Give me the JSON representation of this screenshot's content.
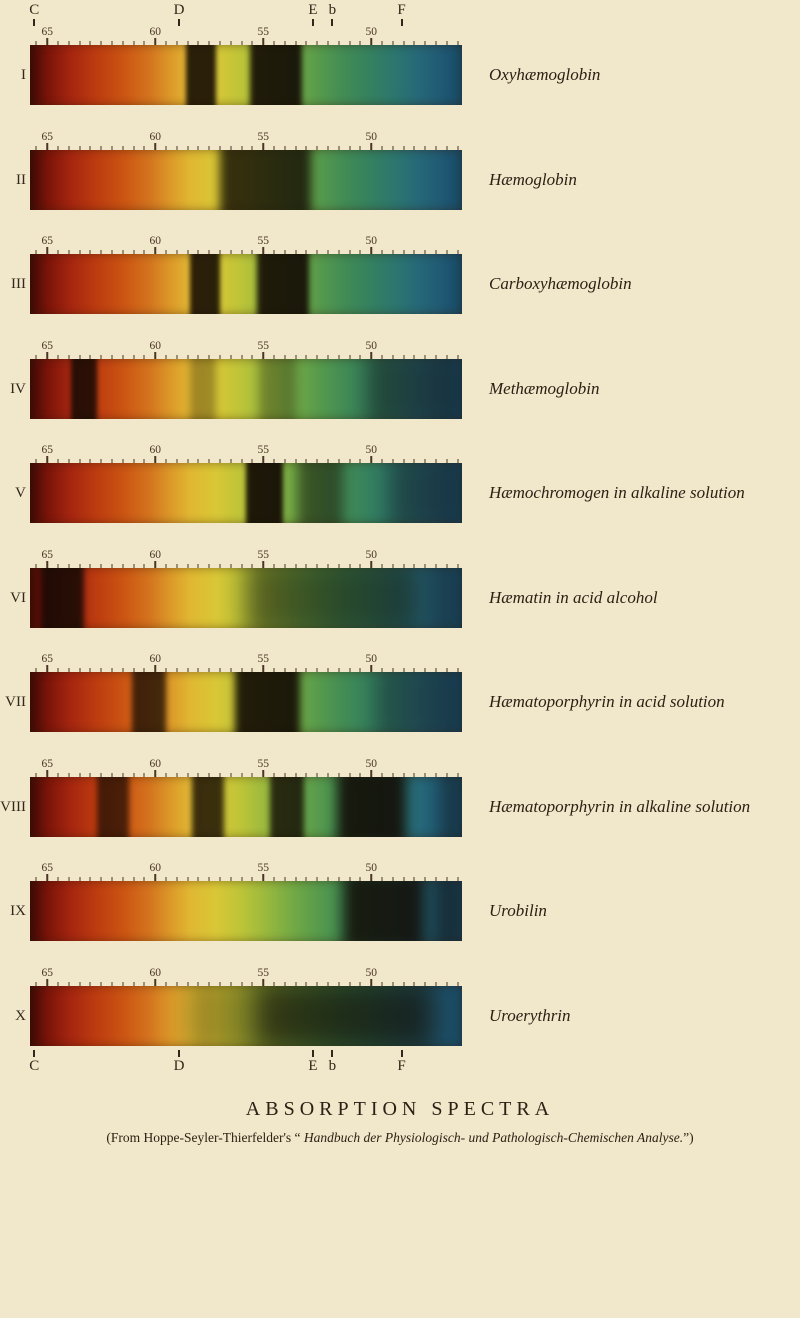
{
  "figure": {
    "title": "ABSORPTION SPECTRA",
    "attribution_prefix": "(From Hoppe-Seyler-Thierfelder's “ ",
    "attribution_title": "Handbuch der Physiologisch- und Pathologisch-Chemischen Analyse.",
    "attribution_suffix": "”)"
  },
  "colors": {
    "background": "#f1e7ca",
    "text": "#2c2014",
    "absorption_band": "#120a04"
  },
  "chart_data": {
    "type": "heatmap",
    "title": "ABSORPTION SPECTRA",
    "x_axis": {
      "unit": "wavelength (tens of nm)",
      "tick_labels": [
        "65",
        "60",
        "55",
        "50"
      ],
      "tick_nm": [
        650,
        600,
        550,
        500
      ],
      "range_nm": [
        658,
        458
      ],
      "fraunhofer_lines": [
        {
          "letter": "C",
          "nm": 656
        },
        {
          "letter": "D",
          "nm": 589
        },
        {
          "letter": "E",
          "nm": 527
        },
        {
          "letter": "b",
          "nm": 518
        },
        {
          "letter": "F",
          "nm": 486
        }
      ]
    },
    "rows": [
      {
        "numeral": "I",
        "label": "Oxyhæmoglobin",
        "bands": [
          {
            "hi": 586,
            "lo": 572,
            "op": 0.88,
            "soft": 2.5
          },
          {
            "hi": 556,
            "lo": 532,
            "op": 0.9,
            "soft": 3
          }
        ]
      },
      {
        "numeral": "II",
        "label": "Hæmoglobin",
        "bands": [
          {
            "hi": 570,
            "lo": 528,
            "op": 0.8,
            "soft": 5
          }
        ]
      },
      {
        "numeral": "III",
        "label": "Carboxyhæmoglobin",
        "bands": [
          {
            "hi": 584,
            "lo": 570,
            "op": 0.88,
            "soft": 2.5
          },
          {
            "hi": 553,
            "lo": 529,
            "op": 0.9,
            "soft": 3
          }
        ]
      },
      {
        "numeral": "IV",
        "label": "Methæmoglobin",
        "bands": [
          {
            "hi": 639,
            "lo": 627,
            "op": 0.85,
            "soft": 2.5
          },
          {
            "hi": 584,
            "lo": 572,
            "op": 0.3,
            "soft": 4
          },
          {
            "hi": 552,
            "lo": 535,
            "op": 0.3,
            "soft": 5
          },
          {
            "hi": 502,
            "lo": 458,
            "op": 0.45,
            "soft": 10
          }
        ]
      },
      {
        "numeral": "V",
        "label": "Hæmochromogen in alkaline solution",
        "bands": [
          {
            "hi": 558,
            "lo": 541,
            "op": 0.92,
            "soft": 2.5
          },
          {
            "hi": 534,
            "lo": 513,
            "op": 0.5,
            "soft": 6
          },
          {
            "hi": 492,
            "lo": 458,
            "op": 0.4,
            "soft": 10
          }
        ]
      },
      {
        "numeral": "VI",
        "label": "Hæmatin in acid alcohol",
        "bands": [
          {
            "hi": 653,
            "lo": 633,
            "op": 0.85,
            "soft": 3
          },
          {
            "hi": 558,
            "lo": 478,
            "op": 0.5,
            "soft": 12
          },
          {
            "hi": 474,
            "lo": 458,
            "op": 0.3,
            "soft": 10
          }
        ]
      },
      {
        "numeral": "VII",
        "label": "Hæmatoporphyrin in acid solution",
        "bands": [
          {
            "hi": 611,
            "lo": 595,
            "op": 0.75,
            "soft": 3
          },
          {
            "hi": 563,
            "lo": 533,
            "op": 0.9,
            "soft": 4
          },
          {
            "hi": 498,
            "lo": 458,
            "op": 0.35,
            "soft": 10
          }
        ]
      },
      {
        "numeral": "VIII",
        "label": "Hæmatoporphyrin in alkaline solution",
        "bands": [
          {
            "hi": 627,
            "lo": 612,
            "op": 0.7,
            "soft": 3
          },
          {
            "hi": 583,
            "lo": 568,
            "op": 0.8,
            "soft": 3
          },
          {
            "hi": 547,
            "lo": 531,
            "op": 0.8,
            "soft": 3
          },
          {
            "hi": 516,
            "lo": 484,
            "op": 0.88,
            "soft": 6
          },
          {
            "hi": 468,
            "lo": 458,
            "op": 0.35,
            "soft": 8
          }
        ]
      },
      {
        "numeral": "IX",
        "label": "Urobilin",
        "bands": [
          {
            "hi": 513,
            "lo": 475,
            "op": 0.85,
            "soft": 7
          },
          {
            "hi": 472,
            "lo": 458,
            "op": 0.5,
            "soft": 8
          }
        ]
      },
      {
        "numeral": "X",
        "label": "Uroerythrin",
        "bands": [
          {
            "hi": 585,
            "lo": 556,
            "op": 0.3,
            "soft": 12
          },
          {
            "hi": 556,
            "lo": 470,
            "op": 0.72,
            "soft": 14
          }
        ]
      }
    ]
  }
}
